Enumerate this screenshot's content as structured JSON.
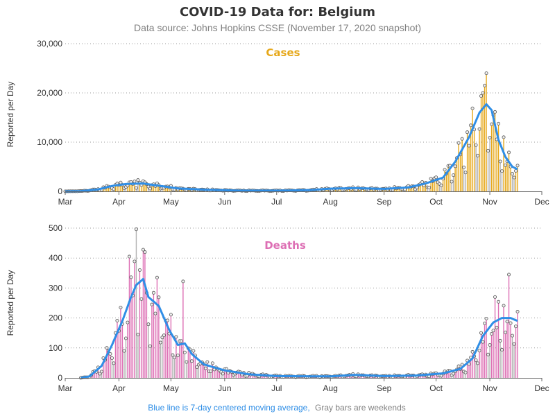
{
  "title": "COVID-19 Data for: Belgium",
  "subtitle": "Data source: Johns Hopkins CSSE (November 17, 2020 snapshot)",
  "footnote": {
    "part1": "Blue line is 7-day centered moving average,",
    "part2": "Gray bars are weekends"
  },
  "colors": {
    "cases": "#e6a81a",
    "deaths": "#dd6fb4",
    "average": "#2f8ee6",
    "weekend": "#b3b3b3",
    "footnote_blue": "#2f8ee6",
    "footnote_gray": "#808080"
  },
  "x_axis": {
    "labels": [
      "Mar",
      "Apr",
      "May",
      "Jun",
      "Jul",
      "Aug",
      "Sep",
      "Oct",
      "Nov",
      "Dec"
    ],
    "start_date": "2020-03-01",
    "end_date": "2020-12-01"
  },
  "chart_data": [
    {
      "type": "bar",
      "title": "Cases",
      "ylabel": "Reported per Day",
      "ylim": [
        0,
        30000
      ],
      "yticks": [
        "0",
        "10,000",
        "20,000",
        "30,000"
      ],
      "grid": true,
      "date_range": [
        "2020-03-01",
        "2020-11-17"
      ],
      "anchors": [
        [
          "2020-03-01",
          0
        ],
        [
          "2020-03-10",
          50
        ],
        [
          "2020-03-20",
          400
        ],
        [
          "2020-03-28",
          1100
        ],
        [
          "2020-04-05",
          1500
        ],
        [
          "2020-04-15",
          1600
        ],
        [
          "2020-04-25",
          1100
        ],
        [
          "2020-05-05",
          600
        ],
        [
          "2020-05-20",
          350
        ],
        [
          "2020-06-10",
          150
        ],
        [
          "2020-07-01",
          150
        ],
        [
          "2020-07-20",
          250
        ],
        [
          "2020-08-01",
          550
        ],
        [
          "2020-08-15",
          650
        ],
        [
          "2020-09-01",
          500
        ],
        [
          "2020-09-15",
          800
        ],
        [
          "2020-09-25",
          1600
        ],
        [
          "2020-10-05",
          2800
        ],
        [
          "2020-10-12",
          6000
        ],
        [
          "2020-10-20",
          11000
        ],
        [
          "2020-10-26",
          16000
        ],
        [
          "2020-10-30",
          17700
        ],
        [
          "2020-11-02",
          16500
        ],
        [
          "2020-11-06",
          10500
        ],
        [
          "2020-11-10",
          7000
        ],
        [
          "2020-11-14",
          5000
        ],
        [
          "2020-11-17",
          4500
        ]
      ],
      "spikes": [
        [
          "2020-04-12",
          2300
        ],
        [
          "2020-10-28",
          20000
        ],
        [
          "2020-10-29",
          21500
        ],
        [
          "2020-10-30",
          24000
        ],
        [
          "2020-11-03",
          15500
        ],
        [
          "2020-11-09",
          11000
        ],
        [
          "2020-11-12",
          7900
        ]
      ]
    },
    {
      "type": "bar",
      "title": "Deaths",
      "ylabel": "Reported per Day",
      "ylim": [
        0,
        500
      ],
      "yticks": [
        "0",
        "100",
        "200",
        "300",
        "400",
        "500"
      ],
      "grid": true,
      "date_range": [
        "2020-03-10",
        "2020-11-17"
      ],
      "anchors": [
        [
          "2020-03-10",
          0
        ],
        [
          "2020-03-15",
          5
        ],
        [
          "2020-03-22",
          40
        ],
        [
          "2020-03-28",
          110
        ],
        [
          "2020-04-03",
          190
        ],
        [
          "2020-04-08",
          270
        ],
        [
          "2020-04-11",
          310
        ],
        [
          "2020-04-15",
          330
        ],
        [
          "2020-04-18",
          270
        ],
        [
          "2020-04-24",
          240
        ],
        [
          "2020-04-30",
          160
        ],
        [
          "2020-05-05",
          110
        ],
        [
          "2020-05-09",
          115
        ],
        [
          "2020-05-13",
          80
        ],
        [
          "2020-05-20",
          45
        ],
        [
          "2020-06-01",
          25
        ],
        [
          "2020-06-15",
          12
        ],
        [
          "2020-07-01",
          6
        ],
        [
          "2020-08-01",
          5
        ],
        [
          "2020-08-15",
          10
        ],
        [
          "2020-09-01",
          6
        ],
        [
          "2020-09-20",
          8
        ],
        [
          "2020-10-05",
          15
        ],
        [
          "2020-10-15",
          30
        ],
        [
          "2020-10-22",
          65
        ],
        [
          "2020-10-28",
          140
        ],
        [
          "2020-11-03",
          185
        ],
        [
          "2020-11-08",
          200
        ],
        [
          "2020-11-13",
          200
        ],
        [
          "2020-11-17",
          190
        ]
      ],
      "spikes": [
        [
          "2020-04-07",
          405
        ],
        [
          "2020-04-11",
          496
        ],
        [
          "2020-04-16",
          420
        ],
        [
          "2020-05-08",
          322
        ],
        [
          "2020-11-04",
          270
        ],
        [
          "2020-11-12",
          345
        ]
      ]
    }
  ]
}
